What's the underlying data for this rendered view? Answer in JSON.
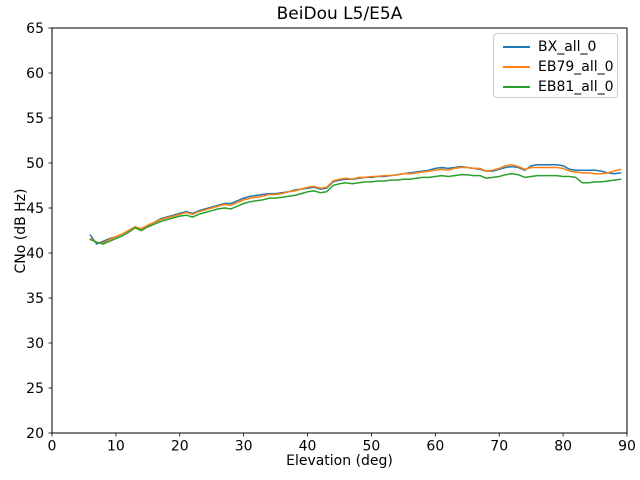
{
  "chart_data": {
    "type": "line",
    "title": "BeiDou L5/E5A",
    "xlabel": "Elevation (deg)",
    "ylabel": "CNo (dB Hz)",
    "xlim": [
      0,
      90
    ],
    "ylim": [
      20,
      65
    ],
    "xticks": [
      0,
      10,
      20,
      30,
      40,
      50,
      60,
      70,
      80,
      90
    ],
    "yticks": [
      20,
      25,
      30,
      35,
      40,
      45,
      50,
      55,
      60,
      65
    ],
    "grid": false,
    "legend_position": "upper right",
    "x": [
      6,
      7,
      8,
      9,
      10,
      11,
      12,
      13,
      14,
      15,
      16,
      17,
      18,
      19,
      20,
      21,
      22,
      23,
      24,
      25,
      26,
      27,
      28,
      29,
      30,
      31,
      32,
      33,
      34,
      35,
      36,
      37,
      38,
      39,
      40,
      41,
      42,
      43,
      44,
      45,
      46,
      47,
      48,
      49,
      50,
      51,
      52,
      53,
      54,
      55,
      56,
      57,
      58,
      59,
      60,
      61,
      62,
      63,
      64,
      65,
      66,
      67,
      68,
      69,
      70,
      71,
      72,
      73,
      74,
      75,
      76,
      77,
      78,
      79,
      80,
      81,
      82,
      83,
      84,
      85,
      86,
      87,
      88,
      89
    ],
    "series": [
      {
        "name": "BX_all_0",
        "color": "#1f77b4",
        "values": [
          42.0,
          41.0,
          41.3,
          41.6,
          41.8,
          42.1,
          42.5,
          42.9,
          42.6,
          43.0,
          43.4,
          43.8,
          44.0,
          44.2,
          44.4,
          44.6,
          44.4,
          44.7,
          44.9,
          45.1,
          45.3,
          45.5,
          45.5,
          45.8,
          46.1,
          46.3,
          46.4,
          46.5,
          46.6,
          46.6,
          46.7,
          46.8,
          47.0,
          47.1,
          47.2,
          47.3,
          47.1,
          47.2,
          47.9,
          48.1,
          48.2,
          48.2,
          48.3,
          48.4,
          48.4,
          48.5,
          48.5,
          48.6,
          48.7,
          48.8,
          48.9,
          49.0,
          49.1,
          49.2,
          49.4,
          49.5,
          49.4,
          49.5,
          49.6,
          49.5,
          49.4,
          49.3,
          49.1,
          49.1,
          49.3,
          49.5,
          49.6,
          49.5,
          49.2,
          49.7,
          49.8,
          49.8,
          49.8,
          49.8,
          49.7,
          49.3,
          49.2,
          49.2,
          49.2,
          49.2,
          49.1,
          48.9,
          48.8,
          48.9
        ]
      },
      {
        "name": "EB79_all_0",
        "color": "#ff7f0e",
        "values": [
          41.6,
          41.2,
          41.1,
          41.5,
          41.8,
          42.1,
          42.5,
          42.9,
          42.7,
          43.1,
          43.4,
          43.7,
          43.9,
          44.1,
          44.3,
          44.5,
          44.3,
          44.6,
          44.8,
          45.0,
          45.2,
          45.4,
          45.3,
          45.6,
          45.9,
          46.1,
          46.2,
          46.3,
          46.5,
          46.5,
          46.6,
          46.8,
          46.9,
          47.1,
          47.3,
          47.4,
          47.2,
          47.3,
          48.0,
          48.2,
          48.3,
          48.2,
          48.4,
          48.4,
          48.5,
          48.5,
          48.6,
          48.6,
          48.7,
          48.8,
          48.8,
          48.9,
          49.0,
          49.1,
          49.2,
          49.3,
          49.2,
          49.4,
          49.5,
          49.5,
          49.4,
          49.4,
          49.1,
          49.2,
          49.4,
          49.7,
          49.8,
          49.6,
          49.3,
          49.5,
          49.5,
          49.5,
          49.5,
          49.5,
          49.4,
          49.1,
          49.0,
          48.9,
          48.9,
          48.8,
          48.8,
          48.9,
          49.1,
          49.3
        ]
      },
      {
        "name": "EB81_all_0",
        "color": "#2ca02c",
        "values": [
          41.5,
          41.2,
          41.0,
          41.3,
          41.6,
          41.9,
          42.3,
          42.8,
          42.5,
          42.9,
          43.2,
          43.5,
          43.7,
          43.9,
          44.1,
          44.2,
          44.0,
          44.3,
          44.5,
          44.7,
          44.9,
          45.0,
          44.9,
          45.2,
          45.5,
          45.7,
          45.8,
          45.9,
          46.1,
          46.1,
          46.2,
          46.3,
          46.4,
          46.6,
          46.8,
          46.9,
          46.7,
          46.8,
          47.5,
          47.7,
          47.8,
          47.7,
          47.8,
          47.9,
          47.9,
          48.0,
          48.0,
          48.1,
          48.1,
          48.2,
          48.2,
          48.3,
          48.4,
          48.4,
          48.5,
          48.6,
          48.5,
          48.6,
          48.7,
          48.7,
          48.6,
          48.6,
          48.3,
          48.4,
          48.5,
          48.7,
          48.8,
          48.7,
          48.4,
          48.5,
          48.6,
          48.6,
          48.6,
          48.6,
          48.5,
          48.5,
          48.4,
          47.8,
          47.8,
          47.9,
          47.9,
          48.0,
          48.1,
          48.2
        ]
      }
    ],
    "axis_color": "#000000",
    "background_color": "#ffffff"
  }
}
